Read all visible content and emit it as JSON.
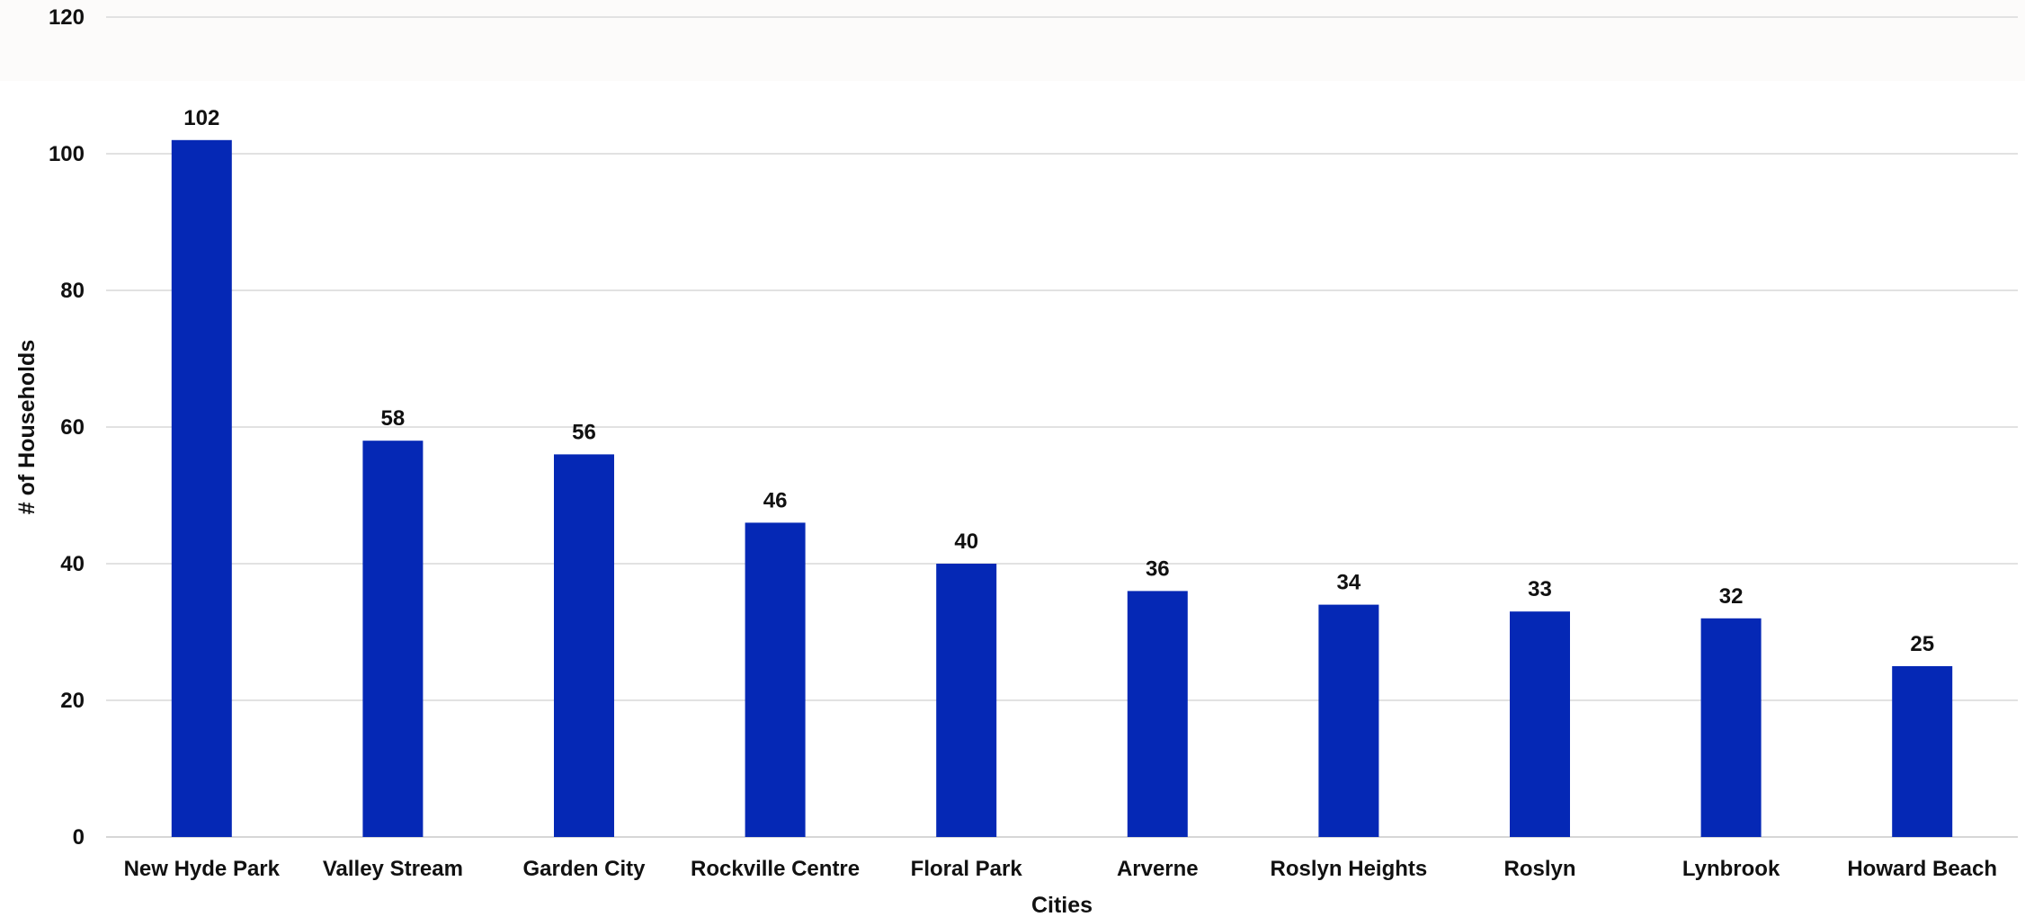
{
  "chart_data": {
    "type": "bar",
    "title": "",
    "xlabel": "Cities",
    "ylabel": "# of Households",
    "ylim": [
      0,
      120
    ],
    "yticks": [
      0,
      20,
      40,
      60,
      80,
      100,
      120
    ],
    "categories": [
      "New Hyde Park",
      "Valley Stream",
      "Garden City",
      "Rockville Centre",
      "Floral Park",
      "Arverne",
      "Roslyn Heights",
      "Roslyn",
      "Lynbrook",
      "Howard Beach"
    ],
    "values": [
      102,
      58,
      56,
      46,
      40,
      36,
      34,
      33,
      32,
      25
    ],
    "bar_color": "#0528b5",
    "grid": true,
    "data_labels": true
  }
}
